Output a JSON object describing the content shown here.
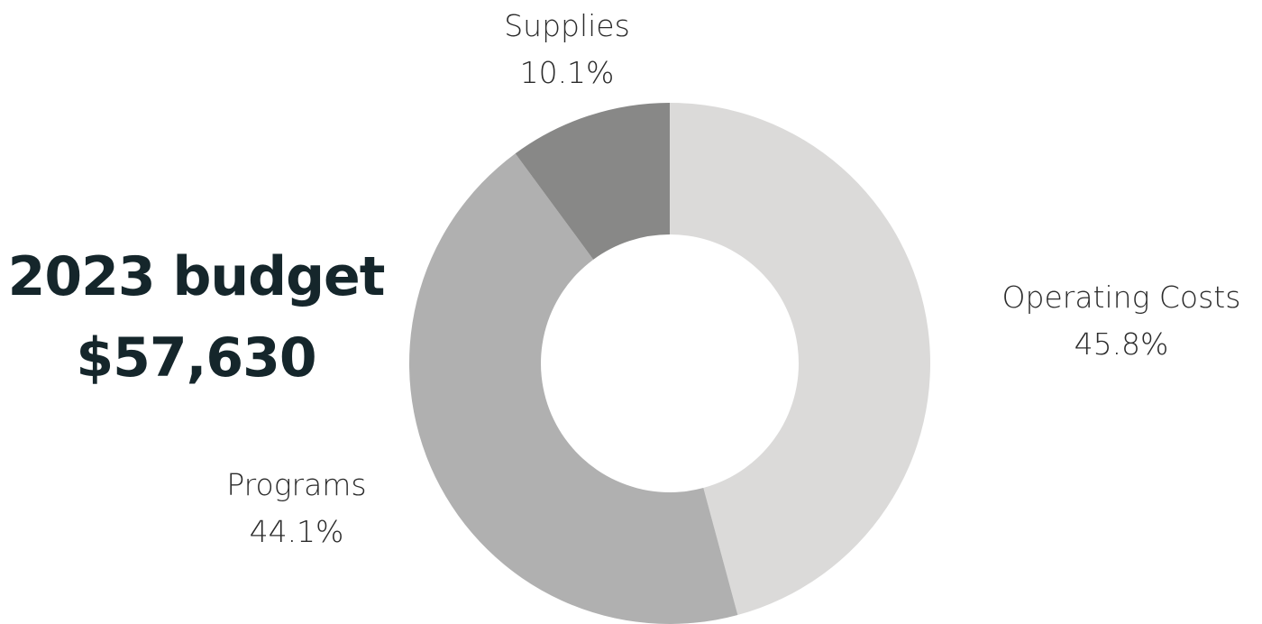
{
  "headline": {
    "title": "2023 budget",
    "amount": "$57,630"
  },
  "chart_data": {
    "type": "pie",
    "donut": true,
    "slices": [
      {
        "label": "Operating Costs",
        "value": 45.8,
        "value_label": "45.8%",
        "color": "#dbdad9"
      },
      {
        "label": "Programs",
        "value": 44.1,
        "value_label": "44.1%",
        "color": "#b0b0b0"
      },
      {
        "label": "Supplies",
        "value": 10.1,
        "value_label": "10.1%",
        "color": "#888887"
      }
    ],
    "start": "top",
    "direction": "clockwise",
    "legend": "none"
  }
}
